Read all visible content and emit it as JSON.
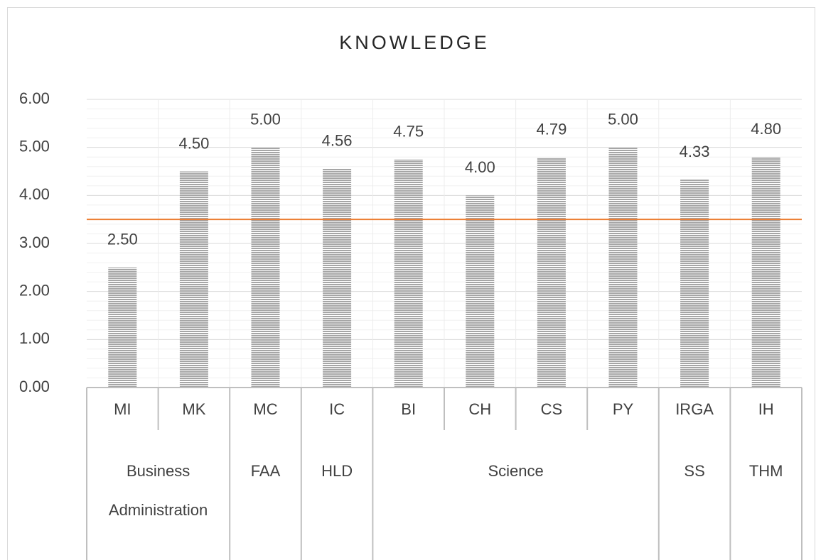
{
  "chart_data": {
    "type": "bar",
    "title": "KNOWLEDGE",
    "categories": [
      "MI",
      "MK",
      "MC",
      "IC",
      "BI",
      "CH",
      "CS",
      "PY",
      "IRGA",
      "IH"
    ],
    "groups": [
      {
        "name": "Business Administration",
        "size": 2
      },
      {
        "name": "FAA",
        "size": 1
      },
      {
        "name": "HLD",
        "size": 1
      },
      {
        "name": "Science",
        "size": 4
      },
      {
        "name": "SS",
        "size": 1
      },
      {
        "name": "THM",
        "size": 1
      }
    ],
    "values": [
      2.5,
      4.5,
      5,
      4.56,
      4.75,
      4,
      4.79,
      5,
      4.33,
      4.8
    ],
    "value_labels": [
      "2.50",
      "4.50",
      "5.00",
      "4.56",
      "4.75",
      "4.00",
      "4.79",
      "5.00",
      "4.33",
      "4.80"
    ],
    "color": "#a6a6a6",
    "reference_line": {
      "value": 3.5,
      "color": "#ed7d31"
    },
    "ylim": [
      0,
      6
    ],
    "yticks": [
      {
        "value": 0,
        "label": "0.00"
      },
      {
        "value": 1,
        "label": "1.00"
      },
      {
        "value": 2,
        "label": "2.00"
      },
      {
        "value": 3,
        "label": "3.00"
      },
      {
        "value": 4,
        "label": "4.00"
      },
      {
        "value": 5,
        "label": "5.00"
      },
      {
        "value": 6,
        "label": "6.00"
      }
    ],
    "grid": true
  }
}
